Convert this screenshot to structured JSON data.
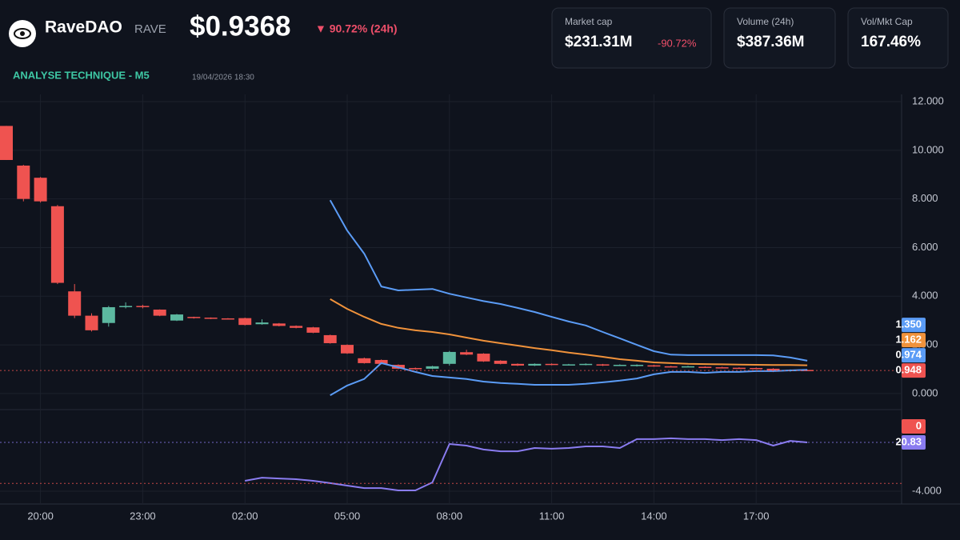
{
  "header": {
    "name": "RaveDAO",
    "ticker": "RAVE",
    "price": "$0.9368",
    "change": "▼ 90.72% (24h)",
    "section": "ANALYSE TECHNIQUE - M5",
    "timestamp": "19/04/2026 18:30"
  },
  "stats": [
    {
      "label": "Market cap",
      "value": "$231.31M",
      "change": "-90.72%"
    },
    {
      "label": "Volume (24h)",
      "value": "$387.36M"
    },
    {
      "label": "Vol/Mkt Cap",
      "value": "167.46%"
    }
  ],
  "chart_data": {
    "type": "candlestick",
    "categories": [
      null,
      null,
      "20:00",
      null,
      null,
      null,
      null,
      null,
      "23:00",
      null,
      null,
      null,
      null,
      null,
      "02:00",
      null,
      null,
      null,
      null,
      null,
      "05:00",
      null,
      null,
      null,
      null,
      null,
      "08:00",
      null,
      null,
      null,
      null,
      null,
      "11:00",
      null,
      null,
      null,
      null,
      null,
      "14:00",
      null,
      null,
      null,
      null,
      null,
      "17:00",
      null,
      null,
      null
    ],
    "open": [
      11.0,
      9.37,
      8.87,
      7.7,
      4.2,
      3.2,
      2.9,
      3.55,
      3.6,
      3.45,
      3.0,
      3.15,
      3.12,
      3.09,
      3.1,
      2.85,
      2.88,
      2.78,
      2.72,
      2.4,
      2.0,
      1.45,
      1.38,
      1.18,
      1.05,
      1.02,
      1.22,
      1.7,
      1.64,
      1.35,
      1.22,
      1.15,
      1.22,
      1.18,
      1.18,
      1.2,
      1.15,
      1.13,
      1.16,
      1.12,
      1.1,
      1.1,
      1.08,
      1.06,
      1.05,
      1.02,
      0.92,
      0.97
    ],
    "high": [
      11.0,
      9.4,
      8.9,
      7.75,
      4.5,
      3.3,
      3.6,
      3.75,
      3.65,
      3.46,
      3.27,
      3.16,
      3.13,
      3.1,
      3.12,
      3.05,
      2.9,
      2.8,
      2.74,
      2.42,
      2.02,
      1.48,
      1.4,
      1.2,
      1.07,
      1.14,
      1.75,
      1.8,
      1.66,
      1.37,
      1.24,
      1.24,
      1.24,
      1.22,
      1.24,
      1.22,
      1.2,
      1.2,
      1.18,
      1.14,
      1.14,
      1.12,
      1.1,
      1.08,
      1.07,
      1.04,
      0.99,
      0.98
    ],
    "low": [
      9.6,
      7.9,
      7.85,
      4.5,
      3.1,
      2.55,
      2.75,
      3.5,
      3.5,
      3.18,
      2.98,
      3.08,
      3.06,
      3.04,
      2.8,
      2.83,
      2.76,
      2.68,
      2.48,
      2.05,
      1.63,
      1.23,
      1.2,
      1.0,
      0.98,
      1.0,
      1.15,
      1.58,
      1.3,
      1.2,
      1.13,
      1.13,
      1.16,
      1.16,
      1.16,
      1.13,
      1.13,
      1.11,
      1.1,
      1.08,
      1.08,
      1.06,
      1.04,
      1.03,
      1.0,
      0.88,
      0.9,
      0.94
    ],
    "close": [
      9.6,
      8.0,
      7.9,
      4.55,
      3.2,
      2.6,
      3.55,
      3.6,
      3.58,
      3.2,
      3.25,
      3.1,
      3.08,
      3.06,
      2.82,
      2.92,
      2.78,
      2.7,
      2.5,
      2.07,
      1.65,
      1.25,
      1.22,
      1.02,
      1.0,
      1.12,
      1.71,
      1.6,
      1.32,
      1.22,
      1.15,
      1.22,
      1.18,
      1.2,
      1.22,
      1.15,
      1.18,
      1.18,
      1.12,
      1.1,
      1.12,
      1.08,
      1.06,
      1.05,
      1.02,
      0.9,
      0.97,
      0.948
    ],
    "up_color": "#5cb8a0",
    "down_color": "#ef5350",
    "series": [
      {
        "color": "#5b9cf6",
        "values": [
          null,
          null,
          null,
          null,
          null,
          null,
          null,
          null,
          null,
          null,
          null,
          null,
          null,
          null,
          null,
          null,
          null,
          null,
          null,
          7.95,
          6.7,
          5.75,
          4.4,
          4.24,
          4.27,
          4.3,
          4.1,
          3.95,
          3.8,
          3.68,
          3.52,
          3.35,
          3.15,
          2.96,
          2.8,
          2.53,
          2.27,
          2.0,
          1.74,
          1.6,
          1.58,
          1.58,
          1.58,
          1.58,
          1.58,
          1.57,
          1.48,
          1.35
        ]
      },
      {
        "color": "#f0923b",
        "values": [
          null,
          null,
          null,
          null,
          null,
          null,
          null,
          null,
          null,
          null,
          null,
          null,
          null,
          null,
          null,
          null,
          null,
          null,
          null,
          3.88,
          3.48,
          3.15,
          2.86,
          2.7,
          2.6,
          2.53,
          2.43,
          2.3,
          2.17,
          2.07,
          1.97,
          1.87,
          1.78,
          1.68,
          1.6,
          1.51,
          1.41,
          1.35,
          1.28,
          1.25,
          1.22,
          1.21,
          1.2,
          1.19,
          1.18,
          1.17,
          1.17,
          1.162
        ]
      },
      {
        "color": "#5b9cf6",
        "values": [
          null,
          null,
          null,
          null,
          null,
          null,
          null,
          null,
          null,
          null,
          null,
          null,
          null,
          null,
          null,
          null,
          null,
          null,
          null,
          -0.07,
          0.33,
          0.6,
          1.25,
          1.08,
          0.89,
          0.72,
          0.66,
          0.6,
          0.49,
          0.43,
          0.4,
          0.36,
          0.36,
          0.36,
          0.4,
          0.46,
          0.53,
          0.62,
          0.79,
          0.89,
          0.89,
          0.85,
          0.89,
          0.89,
          0.92,
          0.92,
          0.95,
          0.974
        ]
      },
      {
        "color": "#8a7cf0",
        "axis": "y2",
        "values": [
          null,
          null,
          null,
          null,
          null,
          null,
          null,
          null,
          null,
          null,
          null,
          null,
          null,
          null,
          1.3,
          2.9,
          2.5,
          2.1,
          1.3,
          0.1,
          -1.15,
          -2.4,
          -2.4,
          -3.6,
          -3.6,
          0.5,
          20.0,
          19.2,
          17.2,
          16.3,
          16.3,
          18.0,
          17.6,
          18.0,
          18.8,
          18.8,
          18.0,
          22.5,
          22.5,
          22.9,
          22.5,
          22.5,
          22.0,
          22.5,
          22.0,
          19.2,
          21.6,
          20.83
        ]
      }
    ],
    "badges": [
      {
        "value": 0.948,
        "label": "0.948",
        "color": "#ef5350"
      },
      {
        "value": 0.974,
        "label": "0.974",
        "color": "#5b9cf6"
      },
      {
        "value": 1.162,
        "label": "1.162",
        "color": "#f0923b"
      },
      {
        "value": 1.35,
        "label": "1.350",
        "color": "#5b9cf6"
      },
      {
        "value": 20.83,
        "label": "20.83",
        "color": "#8a7cf0",
        "axis": "y2"
      },
      {
        "value": 0,
        "label": "0",
        "color": "#ef5350",
        "axis": "y2"
      }
    ],
    "ylim": [
      -0.43,
      12.23
    ],
    "yticks": [
      {
        "value": 0,
        "label": "0.000"
      },
      {
        "value": 2,
        "label": "2.000"
      },
      {
        "value": 4,
        "label": "4.000"
      },
      {
        "value": 6,
        "label": "6.000"
      },
      {
        "value": 8,
        "label": "8.000"
      },
      {
        "value": 10,
        "label": "10.000"
      },
      {
        "value": 12,
        "label": "12.000"
      }
    ],
    "y2lim": [
      -10.5,
      34.26
    ],
    "y2ticks": [
      {
        "value": -4,
        "label": "-4.000"
      }
    ],
    "grid": true
  }
}
